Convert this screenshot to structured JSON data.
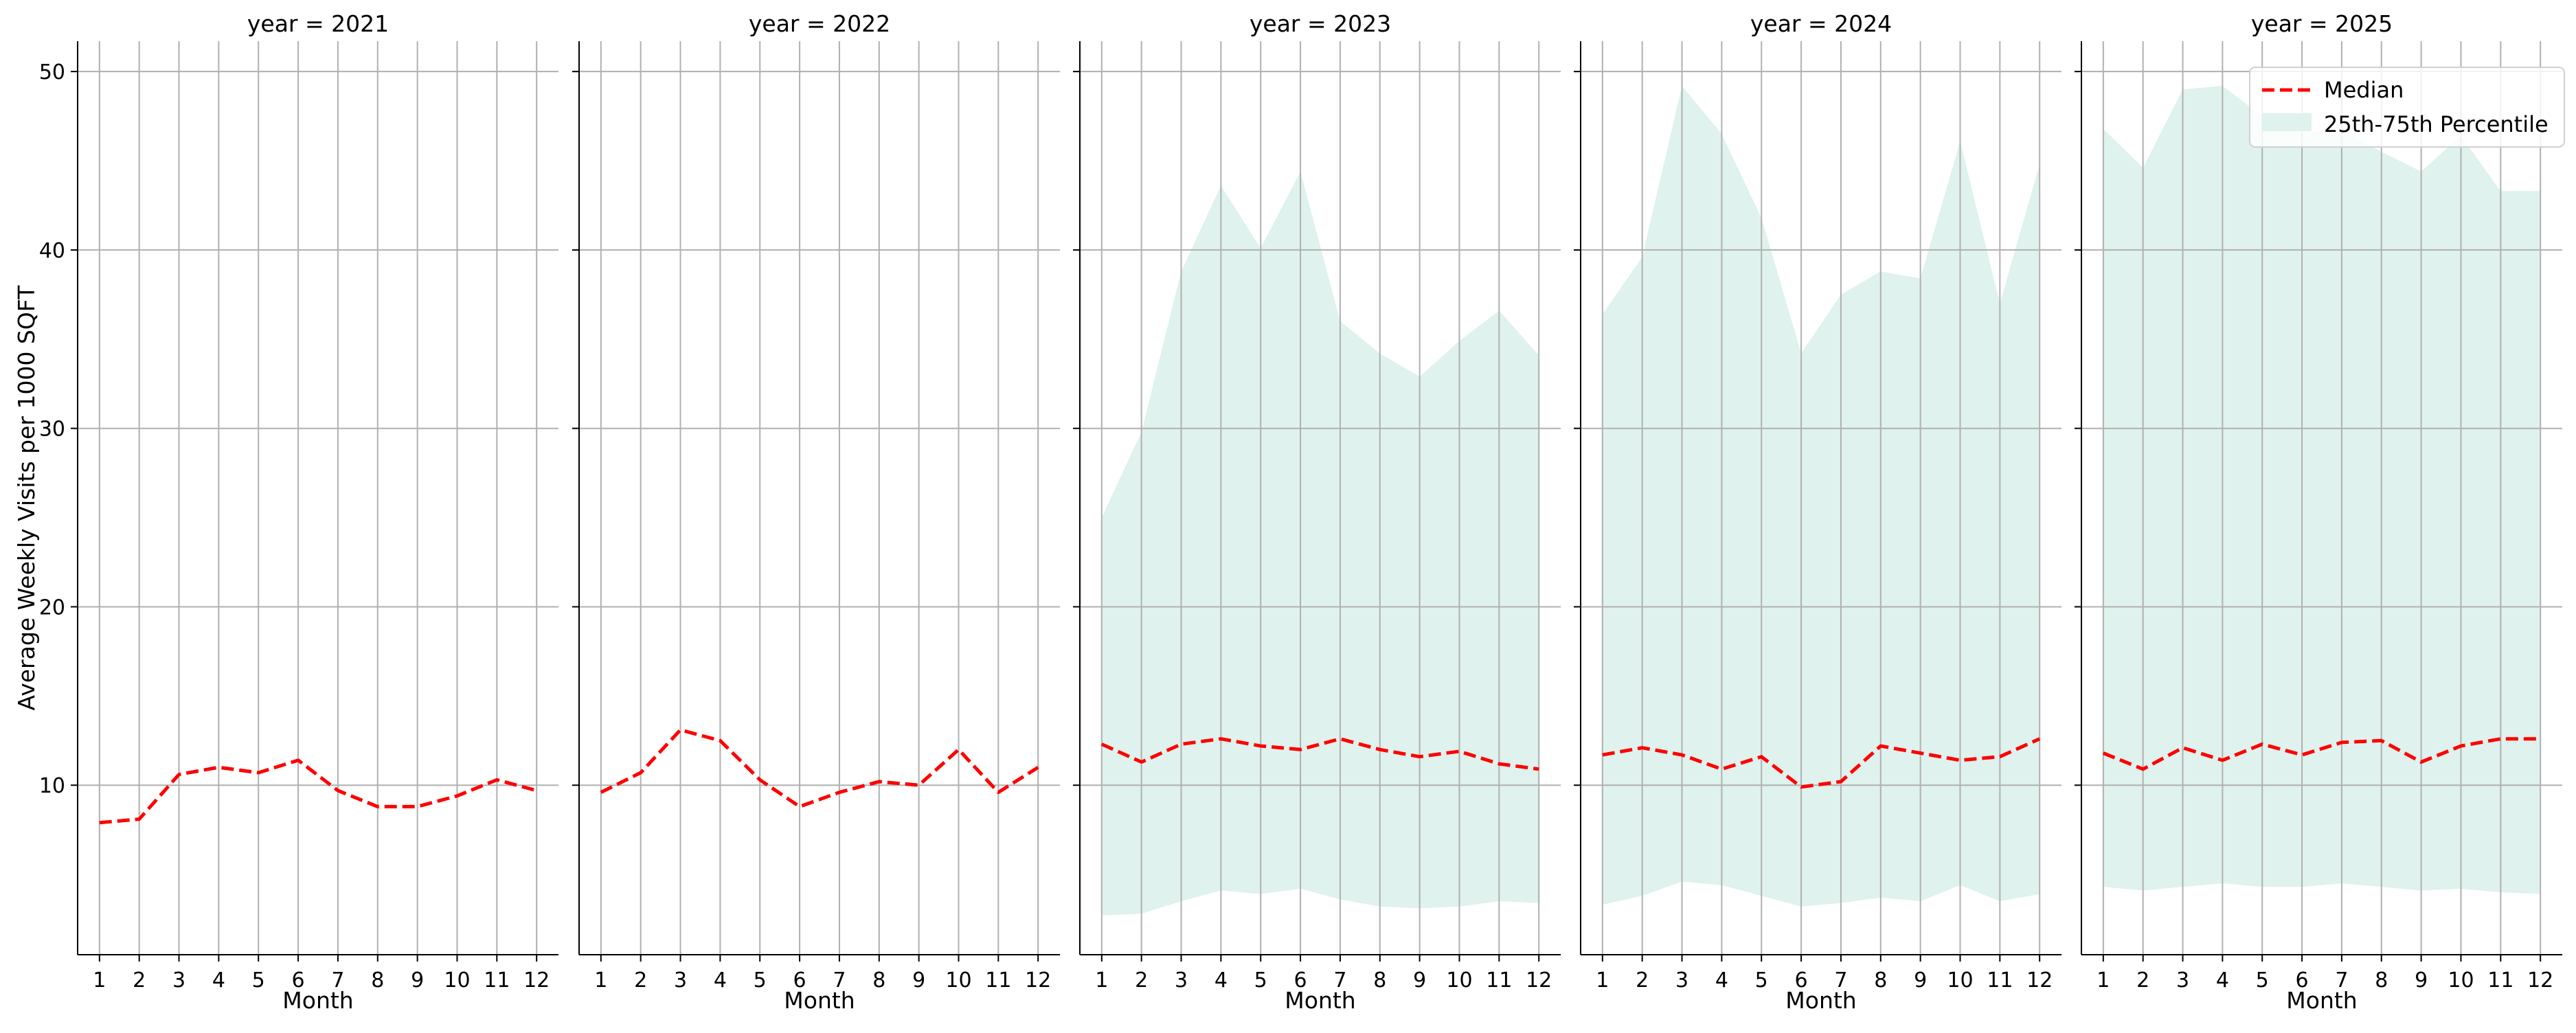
{
  "chart_data": {
    "type": "line",
    "ylabel": "Average Weekly Visits per 1000 SQFT",
    "xlabel": "Month",
    "x": [
      1,
      2,
      3,
      4,
      5,
      6,
      7,
      8,
      9,
      10,
      11,
      12
    ],
    "xticks": [
      "1",
      "2",
      "3",
      "4",
      "5",
      "6",
      "7",
      "8",
      "9",
      "10",
      "11",
      "12"
    ],
    "ylim": [
      0.5,
      51.7
    ],
    "yticks": [
      "10",
      "20",
      "30",
      "40",
      "50"
    ],
    "grid": true,
    "legend": {
      "placement": "top-right",
      "median_label": "Median",
      "band_label": "25th-75th Percentile"
    },
    "colors": {
      "median": "#ff0000",
      "band": "#dff2ed",
      "grid": "#b0b0b0",
      "axis": "#000000"
    },
    "panels": [
      {
        "title": "year = 2021",
        "median": [
          7.9,
          8.1,
          10.6,
          11.0,
          10.7,
          11.4,
          9.7,
          8.8,
          8.8,
          9.4,
          10.3,
          9.7
        ],
        "p25": null,
        "p75": null
      },
      {
        "title": "year = 2022",
        "median": [
          9.6,
          10.7,
          13.1,
          12.5,
          10.3,
          8.8,
          9.6,
          10.2,
          10.0,
          12.0,
          9.6,
          11.0
        ],
        "p25": null,
        "p75": null
      },
      {
        "title": "year = 2023",
        "median": [
          12.3,
          11.3,
          12.3,
          12.6,
          12.2,
          12.0,
          12.6,
          12.0,
          11.6,
          11.9,
          11.2,
          10.9
        ],
        "p25": [
          2.7,
          2.8,
          3.5,
          4.1,
          3.9,
          4.2,
          3.6,
          3.2,
          3.1,
          3.2,
          3.5,
          3.4
        ],
        "p75": [
          25.0,
          29.8,
          38.8,
          43.6,
          40.1,
          44.4,
          36.0,
          34.2,
          32.9,
          34.9,
          36.6,
          34.1
        ]
      },
      {
        "title": "year = 2024",
        "median": [
          11.7,
          12.1,
          11.7,
          10.9,
          11.6,
          9.9,
          10.2,
          12.2,
          11.8,
          11.4,
          11.6,
          12.6
        ],
        "p25": [
          3.3,
          3.8,
          4.6,
          4.4,
          3.8,
          3.2,
          3.4,
          3.7,
          3.5,
          4.4,
          3.5,
          3.9
        ],
        "p75": [
          36.4,
          39.6,
          49.2,
          46.5,
          41.8,
          34.2,
          37.5,
          38.8,
          38.4,
          46.1,
          37.0,
          44.8
        ]
      },
      {
        "title": "year = 2025",
        "median": [
          11.8,
          10.9,
          12.1,
          11.4,
          12.3,
          11.7,
          12.4,
          12.5,
          11.3,
          12.2,
          12.6,
          12.6
        ],
        "p25": [
          4.3,
          4.1,
          4.3,
          4.5,
          4.3,
          4.3,
          4.5,
          4.3,
          4.1,
          4.2,
          4.0,
          3.9
        ],
        "p75": [
          46.8,
          44.6,
          49.0,
          49.2,
          47.5,
          46.5,
          46.8,
          45.5,
          44.4,
          46.4,
          43.3,
          43.3
        ]
      }
    ]
  }
}
